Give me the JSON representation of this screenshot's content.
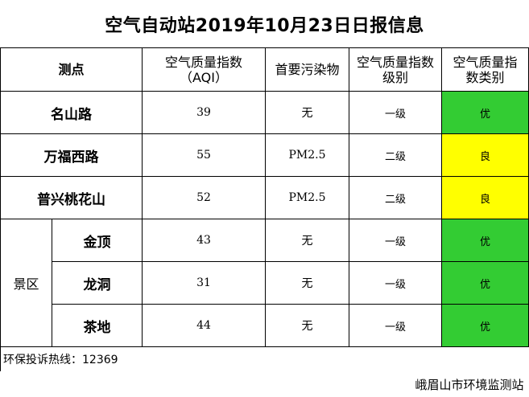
{
  "title": "空气自动站2019年10月23日日报信息",
  "header": {
    "station": "测点",
    "aqi_line1": "空气质量指数",
    "aqi_line2": "（AQI）",
    "pollutant": "首要污染物",
    "level_line1": "空气质量指数",
    "level_line2": "级别",
    "category_line1": "空气质量指",
    "category_line2": "数类别"
  },
  "scenic_group": "景区",
  "rows": [
    {
      "name": "名山路",
      "aqi": "39",
      "pollutant": "无",
      "level": "一级",
      "category": "优",
      "color": "#33cc33"
    },
    {
      "name": "万福西路",
      "aqi": "55",
      "pollutant": "PM2.5",
      "level": "二级",
      "category": "良",
      "color": "#ffff00"
    },
    {
      "name": "普兴桃花山",
      "aqi": "52",
      "pollutant": "PM2.5",
      "level": "二级",
      "category": "良",
      "color": "#ffff00"
    },
    {
      "name": "金顶",
      "aqi": "43",
      "pollutant": "无",
      "level": "一级",
      "category": "优",
      "color": "#33cc33"
    },
    {
      "name": "龙洞",
      "aqi": "31",
      "pollutant": "无",
      "level": "一级",
      "category": "优",
      "color": "#33cc33"
    },
    {
      "name": "茶地",
      "aqi": "44",
      "pollutant": "无",
      "level": "一级",
      "category": "优",
      "color": "#33cc33"
    }
  ],
  "hotline": "环保投诉热线：12369",
  "publisher": "峨眉山市环境监测站"
}
